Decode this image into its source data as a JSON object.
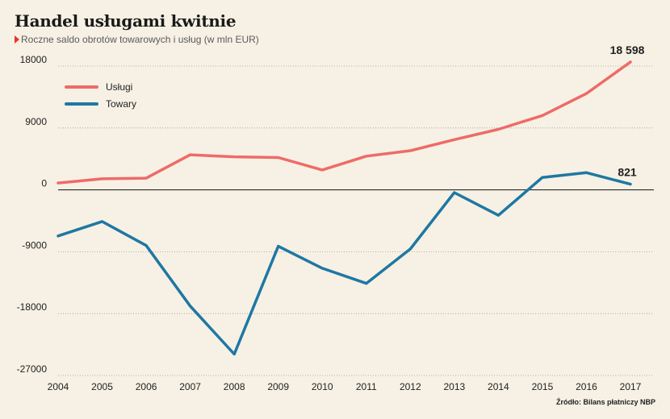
{
  "header": {
    "title": "Handel usługami kwitnie",
    "subtitle": "Roczne saldo obrotów towarowych i usług (w mln EUR)"
  },
  "source": "Źródło: Bilans płatniczy NBP",
  "colors": {
    "uslugi": "#ee6b68",
    "towary": "#1f77a3",
    "background": "#f6f1e4",
    "accent": "#e8322b"
  },
  "chart_data": {
    "type": "line",
    "title": "Handel usługami kwitnie",
    "subtitle": "Roczne saldo obrotów towarowych i usług (w mln EUR)",
    "xlabel": "",
    "ylabel": "",
    "ylim": [
      -27000,
      18000
    ],
    "yticks": [
      18000,
      9000,
      0,
      -9000,
      -18000,
      -27000
    ],
    "ytick_labels": [
      "18000",
      "9000",
      "0",
      "-9000",
      "-18000",
      "-27000"
    ],
    "x": [
      "2004",
      "2005",
      "2006",
      "2007",
      "2008",
      "2009",
      "2010",
      "2011",
      "2012",
      "2013",
      "2014",
      "2015",
      "2016",
      "2017"
    ],
    "series": [
      {
        "name": "Usługi",
        "color": "#ee6b68",
        "values": [
          1000,
          1600,
          1700,
          5100,
          4800,
          4700,
          2900,
          4900,
          5700,
          7300,
          8800,
          10800,
          14000,
          18598
        ]
      },
      {
        "name": "Towary",
        "color": "#1f77a3",
        "values": [
          -6700,
          -4600,
          -8100,
          -16900,
          -23900,
          -8200,
          -11400,
          -13600,
          -8600,
          -400,
          -3700,
          1800,
          2500,
          821
        ]
      }
    ],
    "grid": true,
    "legend_position": "top-left",
    "annotations": [
      {
        "series": "Usługi",
        "x": "2017",
        "text": "18 598"
      },
      {
        "series": "Towary",
        "x": "2017",
        "text": "821"
      }
    ]
  }
}
